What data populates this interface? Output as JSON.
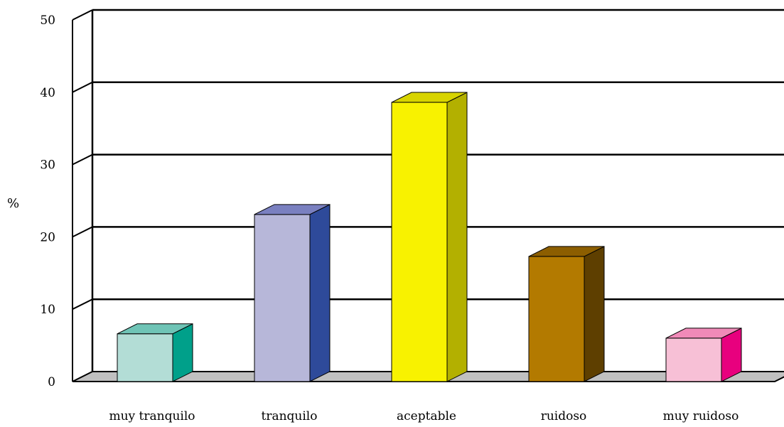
{
  "chart_data": {
    "type": "bar",
    "style": "3d-column",
    "categories": [
      "muy tranquilo",
      "tranquilo",
      "aceptable",
      "ruidoso",
      "muy ruidoso"
    ],
    "values": [
      6.6,
      23.1,
      38.6,
      17.3,
      6.0
    ],
    "ylabel": "%",
    "xlabel": "",
    "title": "",
    "ylim": [
      0,
      50
    ],
    "yticks": [
      0,
      10,
      20,
      30,
      40,
      50
    ],
    "grid": true,
    "legend": "none",
    "colors": [
      {
        "front": "#B3DDD6",
        "side": "#00A08A",
        "top": "#6FC4B6"
      },
      {
        "front": "#B7B7D9",
        "side": "#2E4A9A",
        "top": "#7A80C0"
      },
      {
        "front": "#F8F200",
        "side": "#B3B000",
        "top": "#D8D400"
      },
      {
        "front": "#B37A00",
        "side": "#5E3F00",
        "top": "#8C5E00"
      },
      {
        "front": "#F7C0D6",
        "side": "#E8007E",
        "top": "#F08AB8"
      }
    ],
    "floor_color": "#C0C0C0"
  }
}
